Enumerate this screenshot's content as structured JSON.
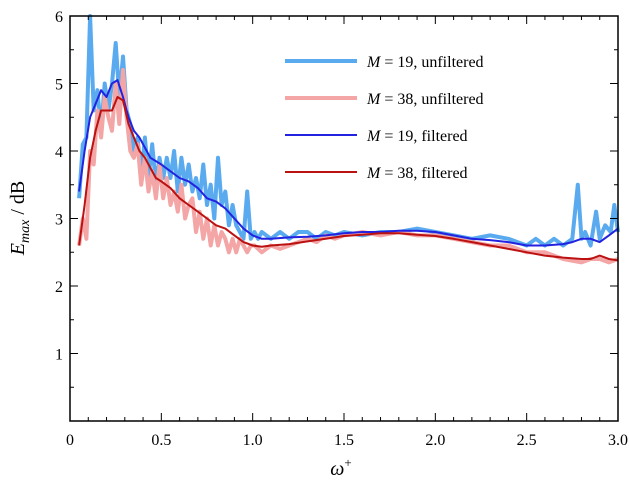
{
  "chart_data": {
    "type": "line",
    "xlabel_symbol": "ω",
    "xlabel_sup": "+",
    "ylabel_symbol": "E",
    "ylabel_sub": "max",
    "ylabel_unit": " / dB",
    "xlim": [
      0,
      3.0
    ],
    "ylim": [
      0,
      6
    ],
    "x_ticks": [
      "0",
      "0.5",
      "1.0",
      "1.5",
      "2.0",
      "2.5",
      "3.0"
    ],
    "x_tick_values": [
      0,
      0.5,
      1.0,
      1.5,
      2.0,
      2.5,
      3.0
    ],
    "y_ticks": [
      "1",
      "2",
      "3",
      "4",
      "5",
      "6"
    ],
    "y_tick_values": [
      1,
      2,
      3,
      4,
      5,
      6
    ],
    "legend_position": "top-right",
    "series": [
      {
        "name": "M = 19, unfiltered",
        "legend_symbol": "M",
        "legend_rest": " = 19, unfiltered",
        "color": "#5aaaf0",
        "width": 4,
        "x": [
          0.05,
          0.07,
          0.09,
          0.11,
          0.13,
          0.15,
          0.17,
          0.19,
          0.21,
          0.23,
          0.25,
          0.27,
          0.29,
          0.31,
          0.33,
          0.35,
          0.37,
          0.39,
          0.41,
          0.43,
          0.45,
          0.47,
          0.49,
          0.51,
          0.53,
          0.55,
          0.57,
          0.59,
          0.61,
          0.63,
          0.65,
          0.67,
          0.69,
          0.71,
          0.73,
          0.75,
          0.77,
          0.79,
          0.81,
          0.83,
          0.85,
          0.87,
          0.89,
          0.91,
          0.93,
          0.95,
          0.97,
          0.99,
          1.01,
          1.03,
          1.05,
          1.1,
          1.15,
          1.2,
          1.25,
          1.3,
          1.35,
          1.4,
          1.45,
          1.5,
          1.6,
          1.7,
          1.8,
          1.9,
          2.0,
          2.1,
          2.2,
          2.3,
          2.4,
          2.5,
          2.55,
          2.6,
          2.65,
          2.7,
          2.75,
          2.78,
          2.8,
          2.82,
          2.85,
          2.88,
          2.9,
          2.93,
          2.96,
          2.98,
          3.0
        ],
        "y": [
          3.3,
          4.1,
          4.2,
          6.0,
          4.6,
          4.9,
          4.3,
          5.0,
          4.6,
          5.0,
          5.6,
          4.8,
          5.4,
          4.6,
          4.4,
          4.0,
          4.2,
          3.6,
          4.2,
          3.6,
          4.1,
          3.5,
          3.9,
          3.6,
          3.9,
          3.6,
          4.0,
          3.4,
          3.9,
          3.5,
          3.8,
          3.4,
          3.6,
          3.3,
          3.8,
          3.2,
          3.5,
          3.0,
          3.9,
          3.2,
          3.4,
          2.9,
          3.2,
          2.9,
          2.8,
          2.7,
          3.4,
          2.7,
          2.8,
          2.7,
          2.8,
          2.7,
          2.8,
          2.7,
          2.8,
          2.8,
          2.7,
          2.8,
          2.75,
          2.8,
          2.75,
          2.8,
          2.8,
          2.85,
          2.8,
          2.75,
          2.7,
          2.75,
          2.7,
          2.6,
          2.7,
          2.6,
          2.7,
          2.6,
          2.7,
          3.5,
          2.7,
          2.8,
          2.6,
          3.1,
          2.7,
          2.9,
          2.8,
          3.2,
          2.8
        ]
      },
      {
        "name": "M = 38, unfiltered",
        "legend_symbol": "M",
        "legend_rest": " = 38, unfiltered",
        "color": "#f4a5a5",
        "width": 4,
        "x": [
          0.05,
          0.07,
          0.09,
          0.11,
          0.13,
          0.15,
          0.17,
          0.19,
          0.21,
          0.23,
          0.25,
          0.27,
          0.29,
          0.31,
          0.33,
          0.35,
          0.37,
          0.39,
          0.41,
          0.43,
          0.45,
          0.47,
          0.49,
          0.51,
          0.53,
          0.55,
          0.57,
          0.59,
          0.61,
          0.63,
          0.65,
          0.67,
          0.69,
          0.71,
          0.73,
          0.75,
          0.77,
          0.79,
          0.81,
          0.83,
          0.85,
          0.87,
          0.89,
          0.91,
          0.93,
          0.95,
          0.97,
          0.99,
          1.01,
          1.05,
          1.1,
          1.15,
          1.2,
          1.25,
          1.3,
          1.35,
          1.4,
          1.45,
          1.5,
          1.6,
          1.7,
          1.8,
          1.9,
          2.0,
          2.1,
          2.2,
          2.3,
          2.4,
          2.5,
          2.6,
          2.7,
          2.8,
          2.85,
          2.9,
          2.95,
          3.0
        ],
        "y": [
          2.6,
          3.0,
          2.7,
          4.0,
          3.8,
          4.6,
          4.2,
          4.8,
          4.5,
          4.3,
          5.0,
          4.4,
          5.2,
          4.5,
          4.0,
          3.9,
          4.1,
          3.5,
          3.9,
          3.4,
          3.7,
          3.3,
          3.8,
          3.3,
          3.6,
          3.2,
          3.4,
          3.1,
          3.5,
          3.0,
          3.2,
          3.3,
          2.8,
          3.1,
          2.7,
          3.0,
          2.6,
          2.9,
          2.6,
          2.8,
          2.7,
          2.5,
          2.7,
          2.5,
          2.7,
          2.6,
          2.5,
          2.6,
          2.6,
          2.5,
          2.6,
          2.55,
          2.6,
          2.65,
          2.7,
          2.65,
          2.75,
          2.7,
          2.75,
          2.8,
          2.75,
          2.8,
          2.75,
          2.75,
          2.7,
          2.65,
          2.6,
          2.6,
          2.5,
          2.5,
          2.4,
          2.35,
          2.4,
          2.4,
          2.35,
          2.4
        ]
      },
      {
        "name": "M = 19, filtered",
        "legend_symbol": "M",
        "legend_rest": " = 19, filtered",
        "color": "#2222e0",
        "width": 2,
        "x": [
          0.05,
          0.08,
          0.11,
          0.14,
          0.17,
          0.2,
          0.23,
          0.26,
          0.29,
          0.32,
          0.35,
          0.38,
          0.41,
          0.44,
          0.47,
          0.5,
          0.55,
          0.6,
          0.65,
          0.7,
          0.75,
          0.8,
          0.85,
          0.9,
          0.95,
          1.0,
          1.05,
          1.1,
          1.2,
          1.3,
          1.4,
          1.5,
          1.6,
          1.7,
          1.8,
          1.9,
          2.0,
          2.1,
          2.2,
          2.3,
          2.4,
          2.5,
          2.6,
          2.7,
          2.75,
          2.8,
          2.85,
          2.9,
          2.95,
          3.0
        ],
        "y": [
          3.4,
          4.0,
          4.5,
          4.7,
          4.9,
          4.8,
          5.0,
          5.05,
          4.8,
          4.5,
          4.3,
          4.2,
          4.05,
          3.9,
          3.85,
          3.8,
          3.7,
          3.6,
          3.55,
          3.45,
          3.3,
          3.25,
          3.15,
          3.0,
          2.85,
          2.75,
          2.7,
          2.7,
          2.72,
          2.73,
          2.75,
          2.78,
          2.8,
          2.8,
          2.82,
          2.82,
          2.8,
          2.75,
          2.7,
          2.68,
          2.65,
          2.6,
          2.6,
          2.62,
          2.65,
          2.7,
          2.7,
          2.65,
          2.75,
          2.85
        ]
      },
      {
        "name": "M = 38, filtered",
        "legend_symbol": "M",
        "legend_rest": " = 38, filtered",
        "color": "#bb1111",
        "width": 2,
        "x": [
          0.05,
          0.08,
          0.11,
          0.14,
          0.17,
          0.2,
          0.23,
          0.26,
          0.29,
          0.32,
          0.35,
          0.38,
          0.41,
          0.44,
          0.47,
          0.5,
          0.55,
          0.6,
          0.65,
          0.7,
          0.75,
          0.8,
          0.85,
          0.9,
          0.95,
          1.0,
          1.05,
          1.1,
          1.2,
          1.3,
          1.4,
          1.5,
          1.6,
          1.7,
          1.8,
          1.9,
          2.0,
          2.1,
          2.2,
          2.3,
          2.4,
          2.5,
          2.6,
          2.7,
          2.8,
          2.85,
          2.9,
          2.95,
          3.0
        ],
        "y": [
          2.6,
          3.2,
          3.9,
          4.3,
          4.6,
          4.6,
          4.6,
          4.8,
          4.75,
          4.4,
          4.2,
          4.0,
          3.9,
          3.75,
          3.6,
          3.55,
          3.45,
          3.3,
          3.2,
          3.1,
          3.0,
          2.9,
          2.85,
          2.75,
          2.65,
          2.6,
          2.58,
          2.6,
          2.62,
          2.66,
          2.7,
          2.74,
          2.76,
          2.78,
          2.78,
          2.76,
          2.74,
          2.7,
          2.65,
          2.6,
          2.55,
          2.5,
          2.45,
          2.42,
          2.4,
          2.4,
          2.45,
          2.4,
          2.38
        ]
      }
    ]
  }
}
